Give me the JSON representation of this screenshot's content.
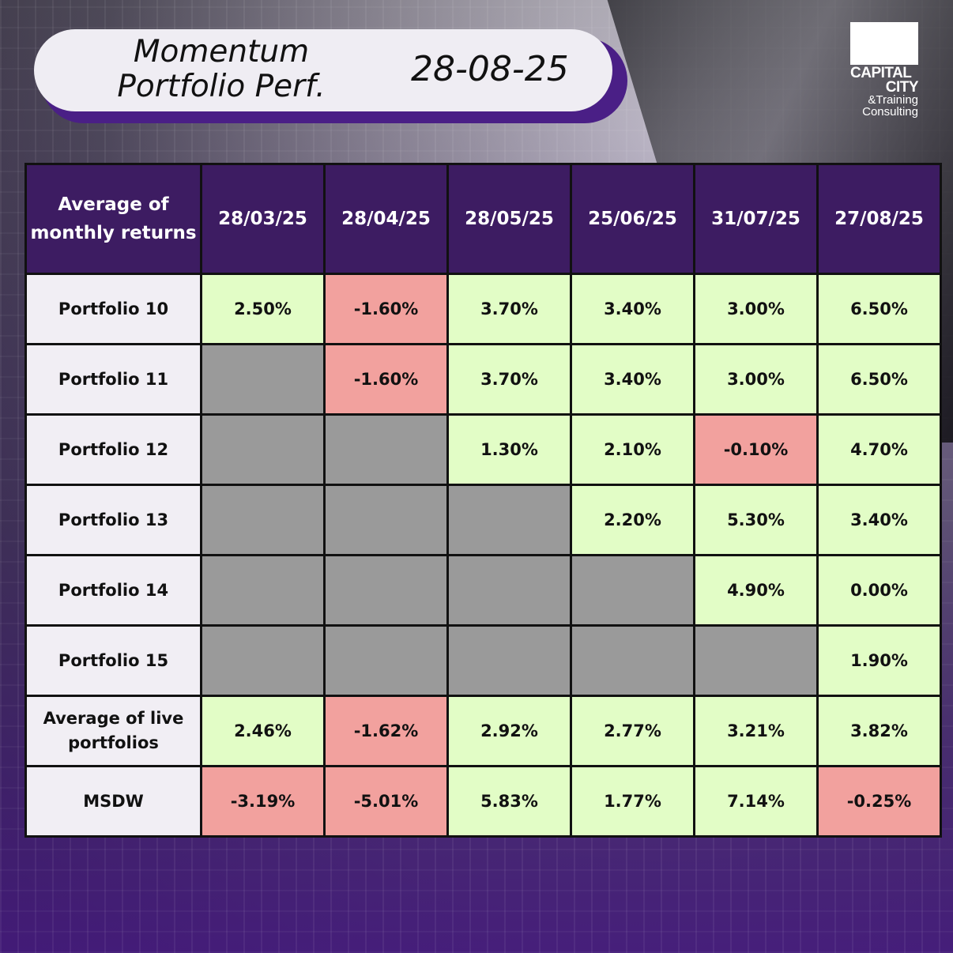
{
  "header": {
    "title_line1": "Momentum",
    "title_line2": "Portfolio Perf.",
    "date": "28-08-25"
  },
  "logo": {
    "line1": "CAPITAL",
    "line2": "CITY",
    "line3": "&Training",
    "line4": "Consulting"
  },
  "table": {
    "corner_label": "Average of monthly returns",
    "columns": [
      "28/03/25",
      "28/04/25",
      "28/05/25",
      "25/06/25",
      "31/07/25",
      "27/08/25"
    ],
    "rows": [
      {
        "label": "Portfolio 10",
        "cells": [
          {
            "v": "2.50%",
            "s": "pos"
          },
          {
            "v": "-1.60%",
            "s": "neg"
          },
          {
            "v": "3.70%",
            "s": "pos"
          },
          {
            "v": "3.40%",
            "s": "pos"
          },
          {
            "v": "3.00%",
            "s": "pos"
          },
          {
            "v": "6.50%",
            "s": "pos"
          }
        ]
      },
      {
        "label": "Portfolio 11",
        "cells": [
          {
            "v": "",
            "s": "empty"
          },
          {
            "v": "-1.60%",
            "s": "neg"
          },
          {
            "v": "3.70%",
            "s": "pos"
          },
          {
            "v": "3.40%",
            "s": "pos"
          },
          {
            "v": "3.00%",
            "s": "pos"
          },
          {
            "v": "6.50%",
            "s": "pos"
          }
        ]
      },
      {
        "label": "Portfolio 12",
        "cells": [
          {
            "v": "",
            "s": "empty"
          },
          {
            "v": "",
            "s": "empty"
          },
          {
            "v": "1.30%",
            "s": "pos"
          },
          {
            "v": "2.10%",
            "s": "pos"
          },
          {
            "v": "-0.10%",
            "s": "neg"
          },
          {
            "v": "4.70%",
            "s": "pos"
          }
        ]
      },
      {
        "label": "Portfolio 13",
        "cells": [
          {
            "v": "",
            "s": "empty"
          },
          {
            "v": "",
            "s": "empty"
          },
          {
            "v": "",
            "s": "empty"
          },
          {
            "v": "2.20%",
            "s": "pos"
          },
          {
            "v": "5.30%",
            "s": "pos"
          },
          {
            "v": "3.40%",
            "s": "pos"
          }
        ]
      },
      {
        "label": "Portfolio 14",
        "cells": [
          {
            "v": "",
            "s": "empty"
          },
          {
            "v": "",
            "s": "empty"
          },
          {
            "v": "",
            "s": "empty"
          },
          {
            "v": "",
            "s": "empty"
          },
          {
            "v": "4.90%",
            "s": "pos"
          },
          {
            "v": "0.00%",
            "s": "pos"
          }
        ]
      },
      {
        "label": "Portfolio 15",
        "cells": [
          {
            "v": "",
            "s": "empty"
          },
          {
            "v": "",
            "s": "empty"
          },
          {
            "v": "",
            "s": "empty"
          },
          {
            "v": "",
            "s": "empty"
          },
          {
            "v": "",
            "s": "empty"
          },
          {
            "v": "1.90%",
            "s": "pos"
          }
        ]
      },
      {
        "label": "Average of live portfolios",
        "cells": [
          {
            "v": "2.46%",
            "s": "pos"
          },
          {
            "v": "-1.62%",
            "s": "neg"
          },
          {
            "v": "2.92%",
            "s": "pos"
          },
          {
            "v": "2.77%",
            "s": "pos"
          },
          {
            "v": "3.21%",
            "s": "pos"
          },
          {
            "v": "3.82%",
            "s": "pos"
          }
        ]
      },
      {
        "label": "MSDW",
        "cells": [
          {
            "v": "-3.19%",
            "s": "neg"
          },
          {
            "v": "-5.01%",
            "s": "neg"
          },
          {
            "v": "5.83%",
            "s": "pos"
          },
          {
            "v": "1.77%",
            "s": "pos"
          },
          {
            "v": "7.14%",
            "s": "pos"
          },
          {
            "v": "-0.25%",
            "s": "neg"
          }
        ]
      }
    ]
  },
  "colors": {
    "header_bg": "#3d1c62",
    "positive": "#e2fdc6",
    "negative": "#f2a19e",
    "empty": "#9a9a9a",
    "row_label_bg": "#f1eef4",
    "pill_shadow": "#4a1f86"
  }
}
